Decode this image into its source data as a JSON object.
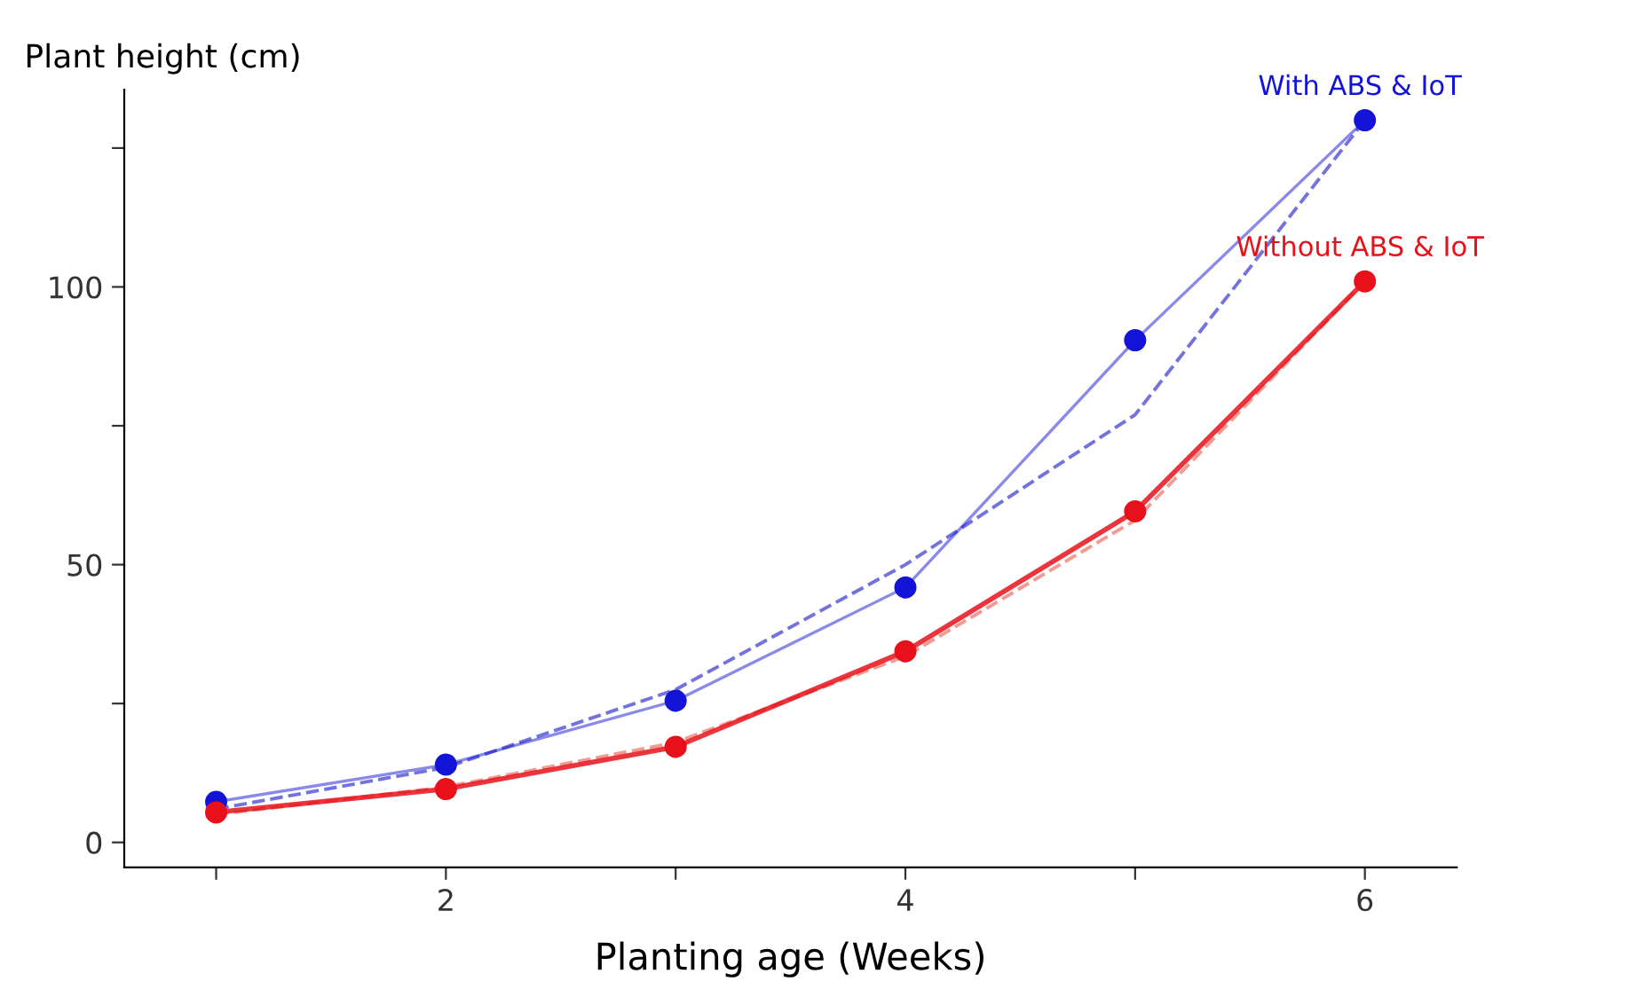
{
  "chart_data": {
    "type": "line",
    "xlabel": "Planting age (Weeks)",
    "ylabel": "Plant height (cm)",
    "x": [
      1,
      2,
      3,
      4,
      5,
      6
    ],
    "series": [
      {
        "name": "With ABS & IoT",
        "color": "#1414d8",
        "marker": "circle",
        "line_style": "solid",
        "values": [
          7.3,
          14,
          25.5,
          45.9,
          90.4,
          130
        ]
      },
      {
        "name": "Without ABS & IoT",
        "color": "#e8101a",
        "marker": "circle",
        "line_style": "solid",
        "values": [
          5.4,
          9.6,
          17.2,
          34.4,
          59.6,
          101
        ]
      },
      {
        "type": "line",
        "color": "#5a5ad8",
        "marker": "none",
        "line_style": "dashed",
        "x": [
          1,
          2,
          3,
          4,
          5,
          6
        ],
        "values": [
          6,
          13.5,
          27.5,
          50,
          77,
          130
        ]
      },
      {
        "type": "line",
        "color": "#f08a80",
        "marker": "none",
        "line_style": "dashed",
        "x": [
          1,
          2,
          3,
          4,
          5,
          6
        ],
        "values": [
          5,
          10,
          18,
          33.5,
          58,
          101
        ]
      }
    ],
    "xlim": [
      0.6,
      6.4
    ],
    "ylim": [
      -4.5,
      135.5
    ],
    "xticks": [
      {
        "value": 1,
        "label": null
      },
      2,
      {
        "value": 3,
        "label": null
      },
      4,
      {
        "value": 5,
        "label": null
      },
      6
    ],
    "yticks": [
      0,
      {
        "value": 25,
        "label": null
      },
      50,
      {
        "value": 75,
        "label": null
      },
      100,
      {
        "value": 125,
        "label": null
      }
    ],
    "grid": false,
    "legend": false
  }
}
